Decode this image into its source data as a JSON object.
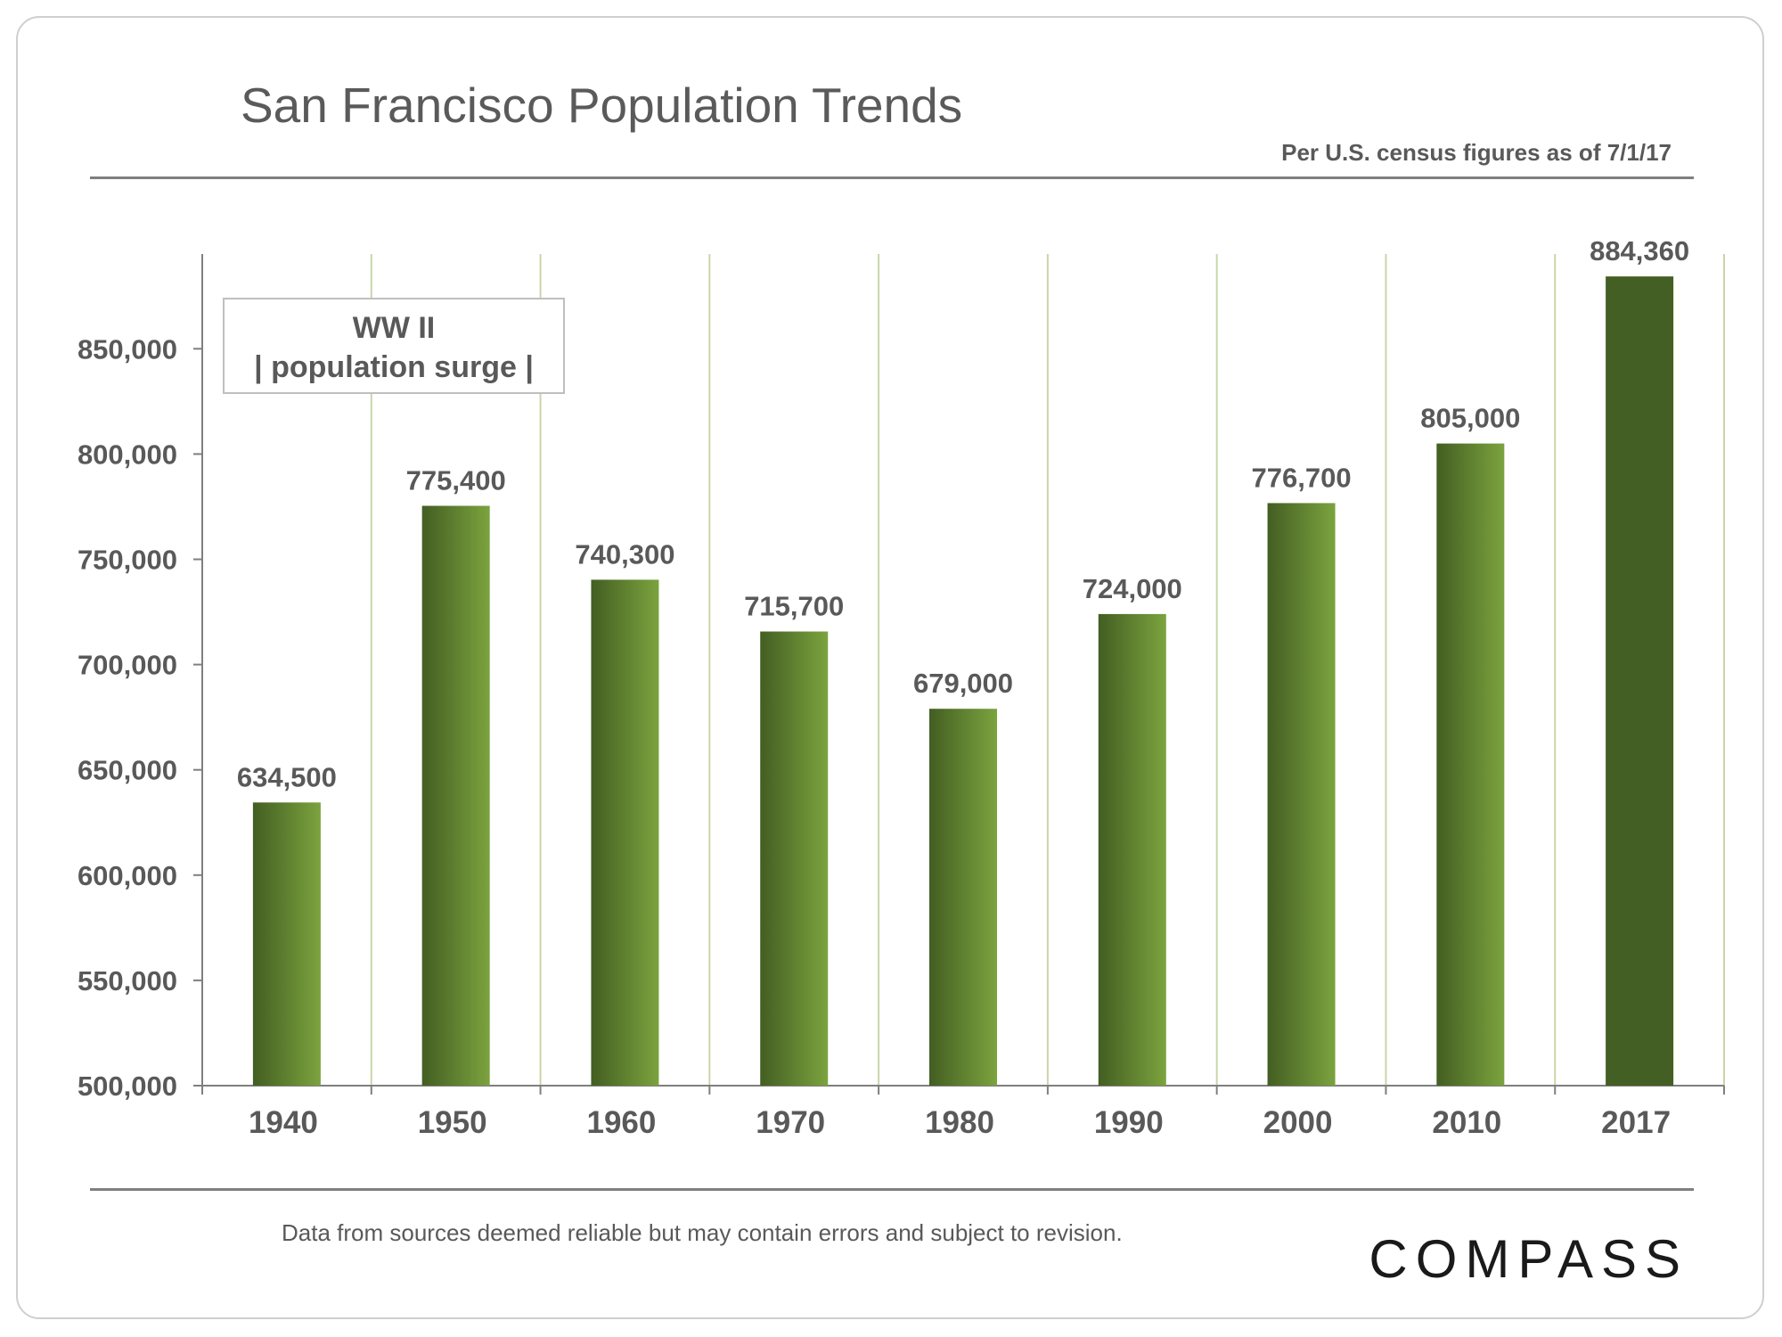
{
  "slide": {
    "title": "San Francisco Population Trends",
    "subtitle": "Per U.S. census figures as of 7/1/17",
    "annotation_line1": "WW II",
    "annotation_line2": "| population surge |",
    "footer_note": "Data from sources deemed reliable but may contain errors and subject to revision.",
    "logo_text": "COMPASS"
  },
  "colors": {
    "bar_dark": "#435e22",
    "bar_light": "#7ba33e",
    "highlight_bar": "#445f23",
    "gridline": "#c9d6a8",
    "axis": "#7f7f7f"
  },
  "chart_data": {
    "type": "bar",
    "title": "San Francisco Population Trends",
    "xlabel": "",
    "ylabel": "",
    "categories": [
      "1940",
      "1950",
      "1960",
      "1970",
      "1980",
      "1990",
      "2000",
      "2010",
      "2017"
    ],
    "values": [
      634500,
      775400,
      740300,
      715700,
      679000,
      724000,
      776700,
      805000,
      884360
    ],
    "value_labels": [
      "634,500",
      "775,400",
      "740,300",
      "715,700",
      "679,000",
      "724,000",
      "776,700",
      "805,000",
      "884,360"
    ],
    "ylim": [
      500000,
      895000
    ],
    "yticks": [
      500000,
      550000,
      600000,
      650000,
      700000,
      750000,
      800000,
      850000
    ],
    "ytick_labels": [
      "500,000",
      "550,000",
      "600,000",
      "650,000",
      "700,000",
      "750,000",
      "800,000",
      "850,000"
    ],
    "highlight_index": 8,
    "grid": true
  }
}
